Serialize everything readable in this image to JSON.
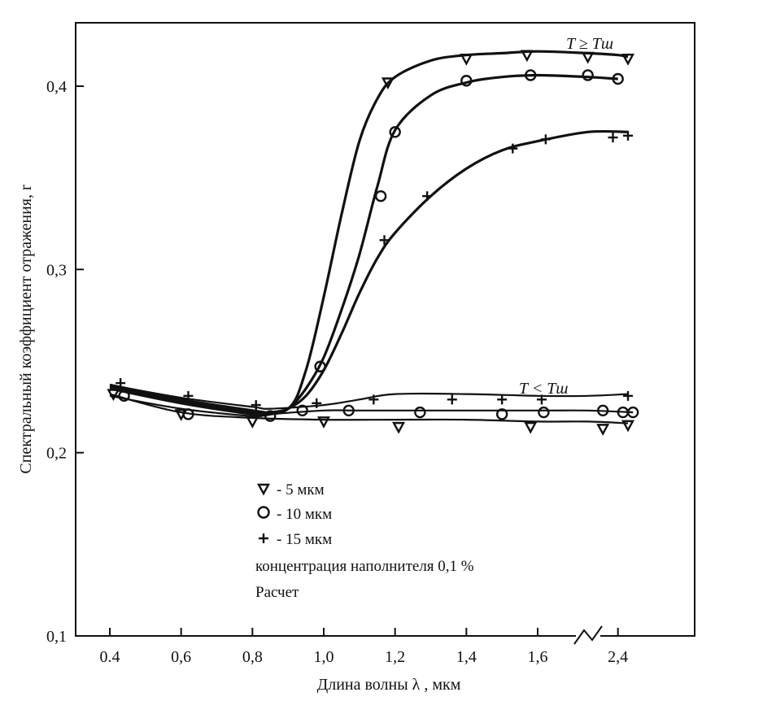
{
  "chart_data": {
    "type": "line",
    "xlabel": "Длина волны  λ , мкм",
    "ylabel": "Спектральный коэффициент отражения, r",
    "x_ticks": [
      "0.4",
      "0,6",
      "0,8",
      "1,0",
      "1,2",
      "1,4",
      "1,6",
      "2,4"
    ],
    "y_ticks": [
      "0,1",
      "0,2",
      "0,3",
      "0,4"
    ],
    "xlim": [
      0.35,
      2.65
    ],
    "ylim": [
      0.1,
      0.43
    ],
    "x_axis_break_at": 1.75,
    "annotations": {
      "upper": "T ≥ Tш",
      "lower": "T < Tш"
    },
    "legend": {
      "items": [
        {
          "marker": "triangle-down",
          "label": "- 5 мкм"
        },
        {
          "marker": "circle",
          "label": "- 10 мкм"
        },
        {
          "marker": "plus",
          "label": "- 15 мкм"
        }
      ],
      "note1": "концентрация наполнителя 0,1 %",
      "note2": "Расчет"
    },
    "series": [
      {
        "group": "T ≥ Tш",
        "marker": "triangle-down",
        "curve_x": [
          0.4,
          0.6,
          0.8,
          0.9,
          0.95,
          1.0,
          1.05,
          1.1,
          1.15,
          1.2,
          1.3,
          1.4,
          1.5,
          1.6,
          2.1,
          2.4,
          2.5
        ],
        "curve_y": [
          0.236,
          0.228,
          0.222,
          0.224,
          0.245,
          0.285,
          0.33,
          0.37,
          0.393,
          0.405,
          0.414,
          0.417,
          0.418,
          0.419,
          0.418,
          0.417,
          0.416
        ],
        "marker_x": [
          1.18,
          1.4,
          1.57,
          2.1,
          2.5
        ],
        "marker_y": [
          0.402,
          0.415,
          0.417,
          0.416,
          0.415
        ]
      },
      {
        "group": "T ≥ Tш",
        "marker": "circle",
        "curve_x": [
          0.4,
          0.6,
          0.8,
          0.85,
          0.9,
          0.95,
          1.0,
          1.05,
          1.1,
          1.15,
          1.2,
          1.3,
          1.4,
          1.5,
          1.6,
          2.1,
          2.4
        ],
        "curve_y": [
          0.235,
          0.227,
          0.221,
          0.221,
          0.224,
          0.235,
          0.252,
          0.278,
          0.308,
          0.345,
          0.376,
          0.395,
          0.402,
          0.405,
          0.406,
          0.405,
          0.404
        ],
        "marker_x": [
          0.99,
          1.16,
          1.2,
          1.4,
          1.58,
          2.1,
          2.4
        ],
        "marker_y": [
          0.247,
          0.34,
          0.375,
          0.403,
          0.406,
          0.406,
          0.404
        ]
      },
      {
        "group": "T ≥ Tш",
        "marker": "plus",
        "curve_x": [
          0.4,
          0.6,
          0.8,
          0.85,
          0.9,
          0.95,
          1.0,
          1.05,
          1.1,
          1.15,
          1.2,
          1.3,
          1.4,
          1.5,
          1.6,
          2.1,
          2.5
        ],
        "curve_y": [
          0.237,
          0.229,
          0.223,
          0.222,
          0.224,
          0.231,
          0.245,
          0.265,
          0.287,
          0.306,
          0.32,
          0.34,
          0.355,
          0.365,
          0.37,
          0.375,
          0.375
        ],
        "marker_x": [
          1.17,
          1.29,
          1.53,
          1.68,
          2.35,
          2.5
        ],
        "marker_y": [
          0.316,
          0.34,
          0.366,
          0.371,
          0.372,
          0.373
        ]
      },
      {
        "group": "T < Tш",
        "marker": "triangle-down",
        "curve_x": [
          0.4,
          0.6,
          0.8,
          1.0,
          1.2,
          1.4,
          1.6,
          2.1,
          2.5
        ],
        "curve_y": [
          0.232,
          0.222,
          0.219,
          0.218,
          0.218,
          0.218,
          0.217,
          0.217,
          0.216
        ],
        "marker_x": [
          0.41,
          0.6,
          0.8,
          1.0,
          1.21,
          1.58,
          2.25,
          2.5
        ],
        "marker_y": [
          0.232,
          0.221,
          0.217,
          0.217,
          0.214,
          0.214,
          0.213,
          0.215
        ]
      },
      {
        "group": "T < Tш",
        "marker": "circle",
        "curve_x": [
          0.4,
          0.6,
          0.8,
          0.85,
          1.0,
          1.1,
          1.3,
          1.6,
          2.1,
          2.55
        ],
        "curve_y": [
          0.231,
          0.224,
          0.22,
          0.221,
          0.223,
          0.223,
          0.223,
          0.223,
          0.223,
          0.222
        ],
        "marker_x": [
          0.44,
          0.62,
          0.85,
          0.94,
          1.07,
          1.27,
          1.5,
          1.66,
          2.25,
          2.45,
          2.55
        ],
        "marker_y": [
          0.231,
          0.221,
          0.22,
          0.223,
          0.223,
          0.222,
          0.221,
          0.222,
          0.223,
          0.222,
          0.222
        ]
      },
      {
        "group": "T < Tш",
        "marker": "plus",
        "curve_x": [
          0.4,
          0.6,
          0.8,
          0.85,
          1.0,
          1.1,
          1.2,
          1.4,
          1.6,
          2.1,
          2.5
        ],
        "curve_y": [
          0.237,
          0.23,
          0.225,
          0.224,
          0.226,
          0.229,
          0.232,
          0.232,
          0.231,
          0.231,
          0.232
        ],
        "marker_x": [
          0.43,
          0.62,
          0.81,
          0.98,
          1.14,
          1.36,
          1.5,
          1.64,
          2.5
        ],
        "marker_y": [
          0.238,
          0.231,
          0.226,
          0.227,
          0.229,
          0.229,
          0.229,
          0.229,
          0.231
        ]
      }
    ]
  }
}
